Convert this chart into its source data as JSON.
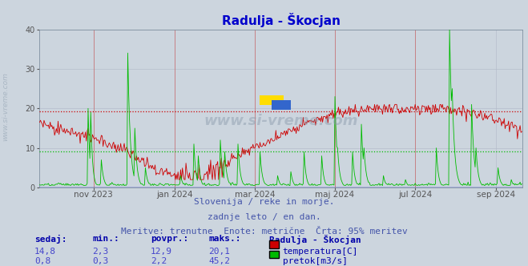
{
  "title": "Radulja - Škocjan",
  "title_color": "#0000cc",
  "title_fontsize": 11,
  "bg_color": "#ccd5de",
  "plot_bg_color": "#ccd5de",
  "grid_color": "#b0b8c8",
  "ylim": [
    0,
    40
  ],
  "yticks": [
    0,
    10,
    20,
    30,
    40
  ],
  "temp_color": "#cc0000",
  "flow_color": "#00bb00",
  "hline_temp_95": 19.3,
  "hline_flow_95": 9.2,
  "hline_color_temp": "#cc0000",
  "hline_color_flow": "#00bb00",
  "subtitle1": "Slovenija / reke in morje.",
  "subtitle2": "zadnje leto / en dan.",
  "subtitle3": "Meritve: trenutne  Enote: metrične  Črta: 95% meritev",
  "subtitle_color": "#4455aa",
  "subtitle_fontsize": 8,
  "table_label_color": "#0000aa",
  "table_value_color": "#4444cc",
  "legend_station": "Radulja - Škocjan",
  "legend_temp_label": "temperatura[C]",
  "legend_flow_label": "pretok[m3/s]",
  "sedaj_label": "sedaj:",
  "min_label": "min.:",
  "povpr_label": "povpr.:",
  "maks_label": "maks.:",
  "temp_sedaj": "14,8",
  "temp_min": "2,3",
  "temp_povpr": "12,9",
  "temp_maks": "20,1",
  "flow_sedaj": "0,8",
  "flow_min": "0,3",
  "flow_povpr": "2,2",
  "flow_maks": "45,2",
  "watermark": "www.si-vreme.com",
  "watermark_color": "#8899aa",
  "x_tick_labels": [
    "nov 2023",
    "jan 2024",
    "mar 2024",
    "maj 2024",
    "jul 2024",
    "sep 2024"
  ],
  "x_tick_positions": [
    61,
    153,
    244,
    335,
    426,
    518
  ],
  "vline_positions": [
    61,
    153,
    244,
    335,
    426
  ],
  "vline_color": "#cc6666",
  "n_points": 548
}
